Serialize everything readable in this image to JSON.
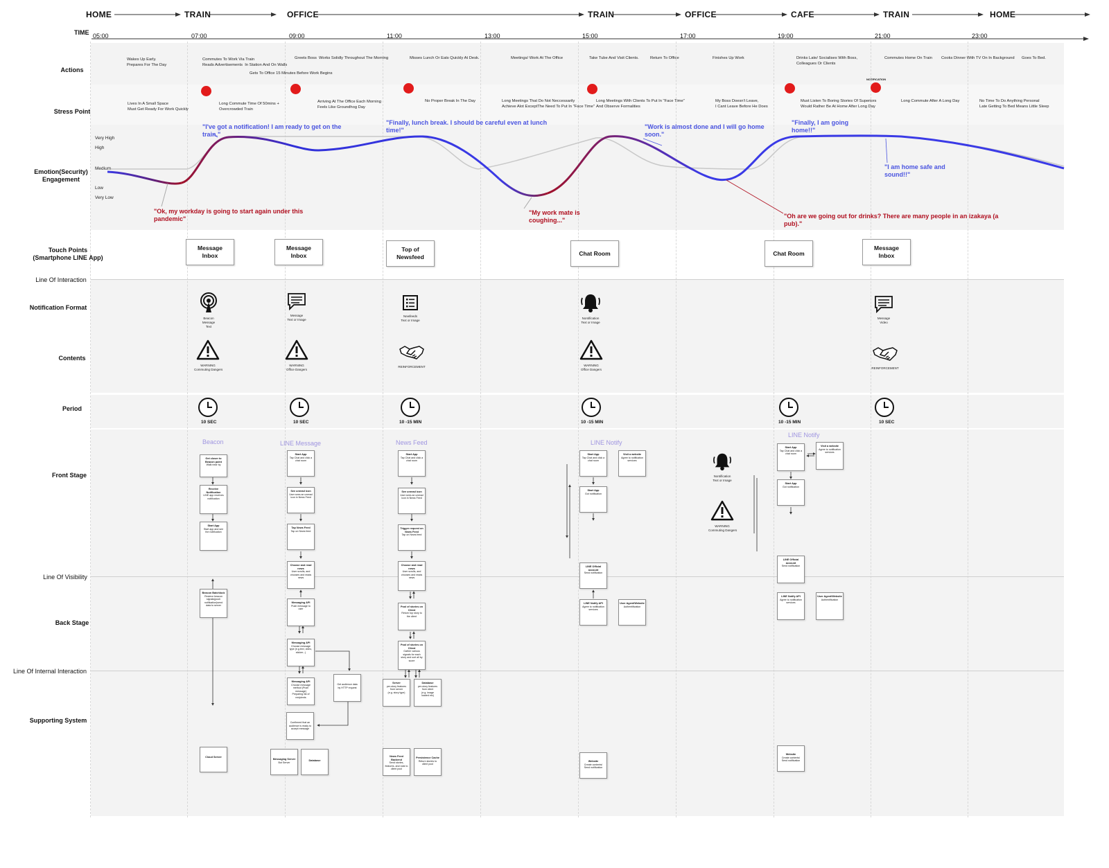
{
  "journey": {
    "locations": [
      "HOME",
      "TRAIN",
      "OFFICE",
      "TRAIN",
      "OFFICE",
      "CAFE",
      "TRAIN",
      "HOME"
    ],
    "time_label": "TIME",
    "hours": [
      "05:00",
      "07:00",
      "09:00",
      "11:00",
      "13:00",
      "15:00",
      "17:00",
      "19:00",
      "21:00",
      "23:00"
    ]
  },
  "rows": {
    "actions": "Actions",
    "stress": "Stress Point",
    "emotion": "Emotion(Security)\nEngagement",
    "touch": "Touch Points\n(Smartphone LINE App)",
    "line_interaction": "Line Of Interaction",
    "notif_format": "Notification Format",
    "contents": "Contents",
    "period": "Period",
    "front": "Front Stage",
    "line_visibility": "Line Of Visibility",
    "back": "Back Stage",
    "line_internal": "Line Of Internal Interaction",
    "support": "Supporting System"
  },
  "emotion_levels": [
    "Very High",
    "High",
    "Medium",
    "Low",
    "Very Low"
  ],
  "actions": [
    "Wakes Up Early.\nPrepares For The Day",
    "Commutes To Work Via Train\nReads Advertisements  In Station And On Walls",
    "Gets To Office 15 Minutes Before Work Begins",
    "Greets Boss",
    "Works Solidly Throughout The Morning",
    "Misses Lunch Or Eats Quickly At Desk.",
    "Meetings/ Work At The Office",
    "Take Tube And Visit Clients.",
    "Return To Office",
    "Finishes Up Work",
    "Drinks Late/ Socialises With Boss,\nColleagues Or Clients",
    "Commutes Home On Train",
    "Cooks Dinner With TV On In Background",
    "Goes To Bed."
  ],
  "stress_points": [
    "Lives In A Small Space\nMust Get Ready For Work Quickly",
    "Long Commute Time Of 50mins +\nOvercrowded Train",
    "Arriving At The Office Each Morning\nFeels Like Groundhog Day",
    "No Proper Break In The Day",
    "Long Meetings That Do Not Neccessarily\nAchieve Alot ExceptThe Need To Put In \"Face Time\"",
    "Long Meetings With Clients To Put In \"Face Time\"\nAnd Observe Formalities",
    "My Boss Doesn't Leave,\nI Cant Leave Before He Does",
    "Must Listen To Boring Stories Of Superiors\nWould Rather Be At Home After Long Day",
    "Long Commute After A Long Day",
    "No Time To Do Anything Personal\nLate Getting To Bed Means Little Sleep"
  ],
  "notification_small": "NOTIFICATION",
  "quotes": [
    {
      "text": "\"I've got a notification! I am ready to get on the\ntrain.\"",
      "tone": "positive"
    },
    {
      "text": "\"Finally, lunch break. I should be careful even at lunch\ntime!\"",
      "tone": "positive"
    },
    {
      "text": "\"Work is almost done and I will go home\nsoon.\"",
      "tone": "positive"
    },
    {
      "text": "\"Finally, I am going\nhome!!\"",
      "tone": "positive"
    },
    {
      "text": "\"I am home safe and\nsound!!\"",
      "tone": "positive"
    },
    {
      "text": "\"Ok, my workday is going to start again under this\npandemic\"",
      "tone": "negative"
    },
    {
      "text": "\"My work mate is\ncoughing...\"",
      "tone": "negative"
    },
    {
      "text": "\"Oh are we going out for drinks? There are many people in an izakaya (a\npub).\"",
      "tone": "negative"
    }
  ],
  "touch_points": [
    "Message\nInbox",
    "Message\nInbox",
    "Top of\nNewsfeed",
    "Chat Room",
    "Chat Room",
    "Message\nInbox"
  ],
  "notification_formats": [
    {
      "icon": "beacon-icon",
      "caption": "Beacon\nMessage\nText"
    },
    {
      "icon": "message-icon",
      "caption": "Message\nText or Image"
    },
    {
      "icon": "newsfeed-icon",
      "caption": "Newfeeds\nText or Image"
    },
    {
      "icon": "bell-icon",
      "caption": "Nontification\nText or Image"
    },
    {
      "icon": "message-icon",
      "caption": "Message\nVideo"
    }
  ],
  "contents": [
    {
      "icon": "warning-icon",
      "caption": "WARNING\nCommuting Dangers"
    },
    {
      "icon": "warning-icon",
      "caption": "WARNING\nOffice Dangers"
    },
    {
      "icon": "handshake-icon",
      "caption": "REINFORCEMENT"
    },
    {
      "icon": "warning-icon",
      "caption": "WARNING\nOffice Dangers"
    },
    {
      "icon": "handshake-icon",
      "caption": "REINFORCEMENT"
    }
  ],
  "periods": [
    "10 SEC",
    "10 SEC",
    "10 -15 MIN",
    "10 -15 MIN",
    "10 -15 MIN",
    "10 SEC"
  ],
  "lanes": {
    "beacon": {
      "title": "Beacon",
      "cards": [
        {
          "t": "Get closer to\nBeacon point",
          "d": "Walk near by"
        },
        {
          "t": "Receive\nNotification",
          "d": "LINE app receives\nnotification"
        },
        {
          "t": "Start App",
          "d": "Start app and see\nthe notification"
        },
        {
          "t": "Beacon Batchlock",
          "d": "Recieve beacon\nsignals(push\nnotification)send\ndata to server"
        },
        {
          "t": "Cloud Server",
          "d": ""
        }
      ]
    },
    "line_message": {
      "title": "LINE Message",
      "cards": [
        {
          "t": "Start App",
          "d": "Tap Chat and click a\nchat room"
        },
        {
          "t": "See unread icon",
          "d": "User sees an unread\nicon in News Feed"
        },
        {
          "t": "Tap News Feed",
          "d": "Tap on News feed"
        },
        {
          "t": "Choose and read\nnews",
          "d": "User scrolls, and\nchooses and reads\nnews"
        },
        {
          "t": "Messaging API",
          "d": "Push message to\nuser"
        },
        {
          "t": "Messaging API",
          "d": "Choose message\ntype (e.g.text, video,\nsticker...)"
        },
        {
          "t": "Messaging API",
          "d": "Choose message\nmethod (Push\nmessage)\nPreparing list of\nrecipients"
        },
        {
          "t": "",
          "d": "Get audience data\nby HTTP request"
        },
        {
          "t": "",
          "d": "Confirmed that an\naudience is ready to\naccept message"
        },
        {
          "t": "Messaging Server",
          "d": "Bot Server"
        },
        {
          "t": "Database",
          "d": ""
        }
      ]
    },
    "news_feed": {
      "title": "News Feed",
      "cards": [
        {
          "t": "Start App",
          "d": "Tap Chat and click a\nchat room"
        },
        {
          "t": "See unread icon",
          "d": "User sees an unread\nicon in News Feed"
        },
        {
          "t": "Trigger request on\nNews Feed",
          "d": "Tap on News feed"
        },
        {
          "t": "Choose and read\nnews",
          "d": "User scrolls, and\nchooses and reads\nnews"
        },
        {
          "t": "Pool of stories on\nClient",
          "d": "Return top story to\nthe client"
        },
        {
          "t": "Pool of stories on\nClient",
          "d": "Gather various\nsignals for each\nstory and sort all by\nscore"
        },
        {
          "t": "Server",
          "d": "per-story features\nfrom server\n(e.g. story type)"
        },
        {
          "t": "Database",
          "d": "per-story features\nfrom client\n(e.g. image\nloaded etc)"
        },
        {
          "t": "News Feed Backend",
          "d": "Send stories,\nfeatures, and rank to\nclient pool"
        },
        {
          "t": "Persistence Cache",
          "d": "Return stories to\nclient pool"
        }
      ]
    },
    "line_notify_1": {
      "title": "LINE Notify",
      "cards": [
        {
          "t": "Start App",
          "d": "Tap Chat and click a\nchat room"
        },
        {
          "t": "Visit a website",
          "d": "Agree to notification\nservices"
        },
        {
          "t": "Start App",
          "d": "Got notification"
        },
        {
          "t": "LINE Official\naccount",
          "d": "Send notification"
        },
        {
          "t": "LINE Notify API",
          "d": "Agree to notification\nservices"
        },
        {
          "t": "User Agent/Website",
          "d": "Authentification"
        },
        {
          "t": "Website",
          "d": "Create contents/\nSend notification"
        }
      ],
      "aside": [
        {
          "icon": "bell-icon",
          "caption": "Nontification\nText or Image"
        },
        {
          "icon": "warning-icon",
          "caption": "WARNING\nCommuting Dangers"
        }
      ]
    },
    "line_notify_2": {
      "title": "LINE Notify",
      "cards": [
        {
          "t": "Start App",
          "d": "Tap Chat and click a\nchat room"
        },
        {
          "t": "Visit a website",
          "d": "Agree to notification\nservices"
        },
        {
          "t": "Start App",
          "d": "Got notification"
        },
        {
          "t": "LINE Official\naccount",
          "d": "Send notification"
        },
        {
          "t": "LINE Notify API",
          "d": "Agree to notification\nservices"
        },
        {
          "t": "User Agent/Website",
          "d": "Authentification"
        },
        {
          "t": "Website",
          "d": "Create contents/\nSend notification"
        }
      ]
    }
  },
  "colors": {
    "positive": "#4a54e0",
    "negative": "#b01020",
    "curve_blue": "#3a3ae6",
    "curve_red": "#a01028",
    "baseline": "#c8c8c8",
    "stress_dot": "#e21b1b",
    "lane_title": "#9f95e0"
  }
}
